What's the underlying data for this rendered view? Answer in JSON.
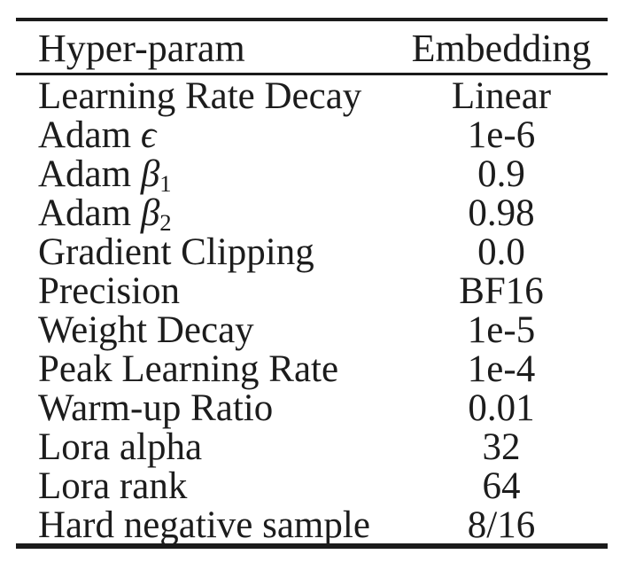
{
  "table": {
    "columns": [
      "Hyper-param",
      "Embedding"
    ],
    "rows": [
      {
        "param": "Learning Rate Decay",
        "value": "Linear"
      },
      {
        "param": "Adam ",
        "symbol": "ϵ",
        "sub": "",
        "value": "1e-6"
      },
      {
        "param": "Adam ",
        "symbol": "β",
        "sub": "1",
        "value": "0.9"
      },
      {
        "param": "Adam ",
        "symbol": "β",
        "sub": "2",
        "value": "0.98"
      },
      {
        "param": "Gradient Clipping",
        "value": "0.0"
      },
      {
        "param": "Precision",
        "value": "BF16"
      },
      {
        "param": "Weight Decay",
        "value": "1e-5"
      },
      {
        "param": "Peak Learning Rate",
        "value": "1e-4"
      },
      {
        "param": "Warm-up Ratio",
        "value": "0.01"
      },
      {
        "param": "Lora alpha",
        "value": "32"
      },
      {
        "param": "Lora rank",
        "value": "64"
      },
      {
        "param": "Hard negative sample",
        "value": "8/16"
      }
    ],
    "colors": {
      "background": "#ffffff",
      "text": "#1c1c1c",
      "rule": "#1b1b1b"
    }
  }
}
